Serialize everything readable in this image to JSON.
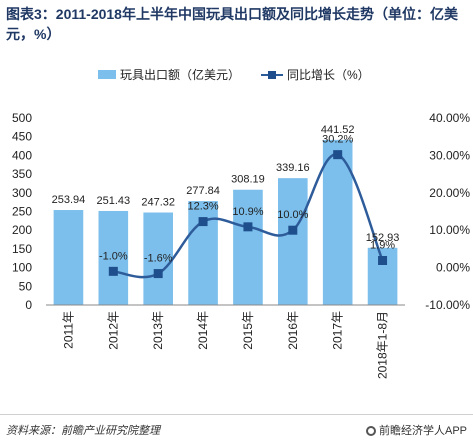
{
  "title": "图表3：2011-2018年上半年中国玩具出口额及同比增长走势（单位：亿美元，%）",
  "footer": {
    "source": "资料来源：前瞻产业研究院整理",
    "brand": "前瞻经济学人APP",
    "brand_icon": "qianzhan-logo-icon"
  },
  "colors": {
    "bar": "#7cbfec",
    "line": "#2e5c9a",
    "marker": "#1f4e8c"
  },
  "chart_data": {
    "type": "bar",
    "categories": [
      "2011年",
      "2012年",
      "2013年",
      "2014年",
      "2015年",
      "2016年",
      "2017年",
      "2018年1-8月"
    ],
    "series": [
      {
        "name": "玩具出口额（亿美元）",
        "type": "bar",
        "axis": "left",
        "values": [
          253.94,
          251.43,
          247.32,
          277.84,
          308.19,
          339.16,
          441.52,
          152.93
        ],
        "labels": [
          "253.94",
          "251.43",
          "247.32",
          "277.84",
          "308.19",
          "339.16",
          "441.52",
          "152.93"
        ]
      },
      {
        "name": "同比增长（%）",
        "type": "line",
        "axis": "right",
        "values": [
          null,
          -1.0,
          -1.6,
          12.3,
          10.9,
          10.0,
          30.2,
          1.9
        ],
        "labels": [
          "",
          "-1.0%",
          "-1.6%",
          "12.3%",
          "10.9%",
          "10.0%",
          "30.2%",
          "1.9%"
        ]
      }
    ],
    "y_left": {
      "ylim": [
        0,
        500
      ],
      "ticks": [
        0,
        50,
        100,
        150,
        200,
        250,
        300,
        350,
        400,
        450,
        500
      ],
      "tick_labels": [
        "0",
        "50",
        "100",
        "150",
        "200",
        "250",
        "300",
        "350",
        "400",
        "450",
        "500"
      ]
    },
    "y_right": {
      "ylim": [
        -10,
        40
      ],
      "ticks": [
        -10,
        0,
        10,
        20,
        30,
        40
      ],
      "tick_labels": [
        "-10.00%",
        "0.00%",
        "10.00%",
        "20.00%",
        "30.00%",
        "40.00%"
      ]
    },
    "legend_position": "top-center",
    "grid": false
  }
}
